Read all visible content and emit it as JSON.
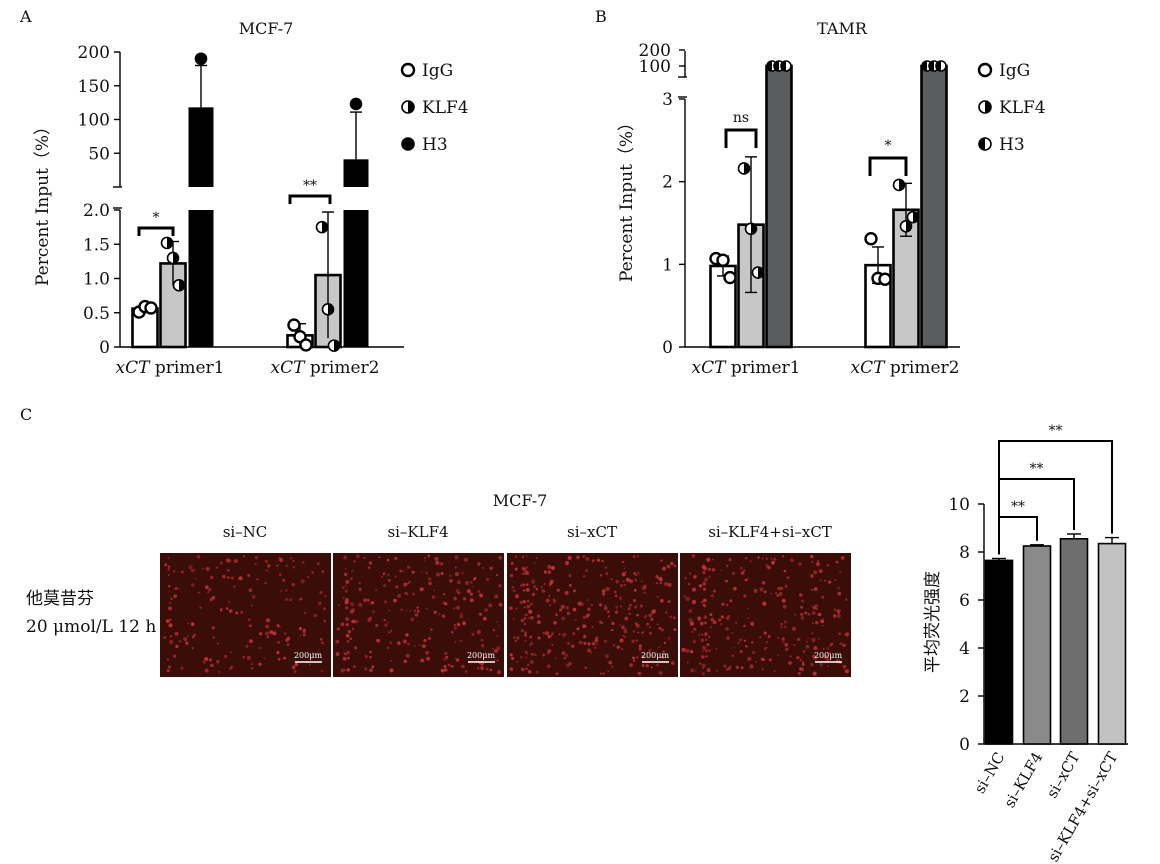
{
  "panels": {
    "A": {
      "letter": "A"
    },
    "B": {
      "letter": "B"
    },
    "C": {
      "letter": "C"
    }
  },
  "chart_data": [
    {
      "id": "A",
      "type": "bar",
      "title": "MCF-7",
      "ylabel": "Percent Input（%）",
      "xlabel": "",
      "broken_axis": true,
      "lower_ylim": [
        0,
        2.0
      ],
      "upper_ylim": [
        0,
        200
      ],
      "lower_ticks": [
        "0",
        "0.5",
        "1.0",
        "1.5",
        "2.0"
      ],
      "upper_ticks": [
        "50",
        "100",
        "150",
        "200"
      ],
      "categories": [
        {
          "italic": "xCT",
          "plain": " primer1"
        },
        {
          "italic": "xCT",
          "plain": " primer2"
        }
      ],
      "legend": [
        {
          "name": "IgG",
          "marker": "open"
        },
        {
          "name": "KLF4",
          "marker": "half"
        },
        {
          "name": "H3",
          "marker": "filled"
        }
      ],
      "series": [
        {
          "name": "IgG",
          "fill": "#ffffff",
          "marker": "open",
          "values": [
            0.56,
            0.17
          ],
          "errors": [
            0.05,
            0.17
          ],
          "points": [
            [
              0.51,
              0.59,
              0.57
            ],
            [
              0.32,
              0.15,
              0.03
            ]
          ]
        },
        {
          "name": "KLF4",
          "fill": "#c7c7c7",
          "marker": "half",
          "values": [
            1.22,
            1.05
          ],
          "errors": [
            0.32,
            0.92
          ],
          "points": [
            [
              1.52,
              1.3,
              0.9
            ],
            [
              1.75,
              0.55,
              0.02
            ]
          ]
        },
        {
          "name": "H3",
          "fill": "#000000",
          "marker": "filled",
          "values": [
            118,
            41
          ],
          "errors": [
            62,
            70
          ],
          "points": [
            [
              190
            ],
            [
              123
            ]
          ]
        }
      ],
      "significance": [
        {
          "label": "*",
          "category": 0
        },
        {
          "label": "**",
          "category": 1
        }
      ]
    },
    {
      "id": "B",
      "type": "bar",
      "title": "TAMR",
      "ylabel": "Percent Input（%）",
      "xlabel": "",
      "broken_axis": true,
      "lower_ylim": [
        0,
        3
      ],
      "lower_ticks": [
        "0",
        "1",
        "2",
        "3"
      ],
      "upper_ticks": [
        "100",
        "200"
      ],
      "categories": [
        {
          "italic": "xCT",
          "plain": " primer1"
        },
        {
          "italic": "xCT",
          "plain": " primer2"
        }
      ],
      "legend": [
        {
          "name": "IgG",
          "marker": "open"
        },
        {
          "name": "KLF4",
          "marker": "half"
        },
        {
          "name": "H3",
          "marker": "halfleft"
        }
      ],
      "series": [
        {
          "name": "IgG",
          "fill": "#ffffff",
          "marker": "open",
          "values": [
            0.98,
            0.99
          ],
          "errors": [
            0.12,
            0.22
          ],
          "points": [
            [
              1.07,
              1.05,
              0.84
            ],
            [
              1.31,
              0.83,
              0.82
            ]
          ]
        },
        {
          "name": "KLF4",
          "fill": "#c7c7c7",
          "marker": "half",
          "values": [
            1.48,
            1.66
          ],
          "errors": [
            0.82,
            0.32
          ],
          "points": [
            [
              2.16,
              1.43,
              0.9
            ],
            [
              1.96,
              1.46,
              1.57
            ]
          ]
        },
        {
          "name": "H3",
          "fill": "#5a5c60",
          "marker": "halfleft",
          "values": [
            100,
            100
          ],
          "errors": [
            0,
            0
          ],
          "points": [
            [
              100,
              100,
              100
            ],
            [
              100,
              100,
              100
            ]
          ]
        }
      ],
      "significance": [
        {
          "label": "ns",
          "category": 0
        },
        {
          "label": "*",
          "category": 1
        }
      ]
    },
    {
      "id": "C",
      "type": "bar",
      "title": "",
      "ylabel": "平均荧光强度",
      "xlabel": "",
      "ylim": [
        0,
        10
      ],
      "ticks": [
        "0",
        "2",
        "4",
        "6",
        "8",
        "10"
      ],
      "categories": [
        "si–NC",
        "si–KLF4",
        "si–xCT",
        "si–KLF4+si–xCT"
      ],
      "values": [
        7.65,
        8.25,
        8.55,
        8.35
      ],
      "errors": [
        0.08,
        0.05,
        0.2,
        0.25
      ],
      "colors": [
        "#000000",
        "#8a8a8a",
        "#6e6e6e",
        "#c2c2c2"
      ],
      "significance": [
        {
          "label": "**",
          "from": 0,
          "to": 1
        },
        {
          "label": "**",
          "from": 0,
          "to": 2
        },
        {
          "label": "**",
          "from": 0,
          "to": 3
        }
      ]
    }
  ],
  "micrographs": {
    "cell_line": "MCF-7",
    "row_label_line1": "他莫昔芬",
    "row_label_line2": "20 μmol/L 12 h",
    "scale_bar": "200μm",
    "columns": [
      "si–NC",
      "si–KLF4",
      "si–xCT",
      "si–KLF4+si–xCT"
    ],
    "background_color": "#3a0d08",
    "cell_color": "#c0333a"
  }
}
